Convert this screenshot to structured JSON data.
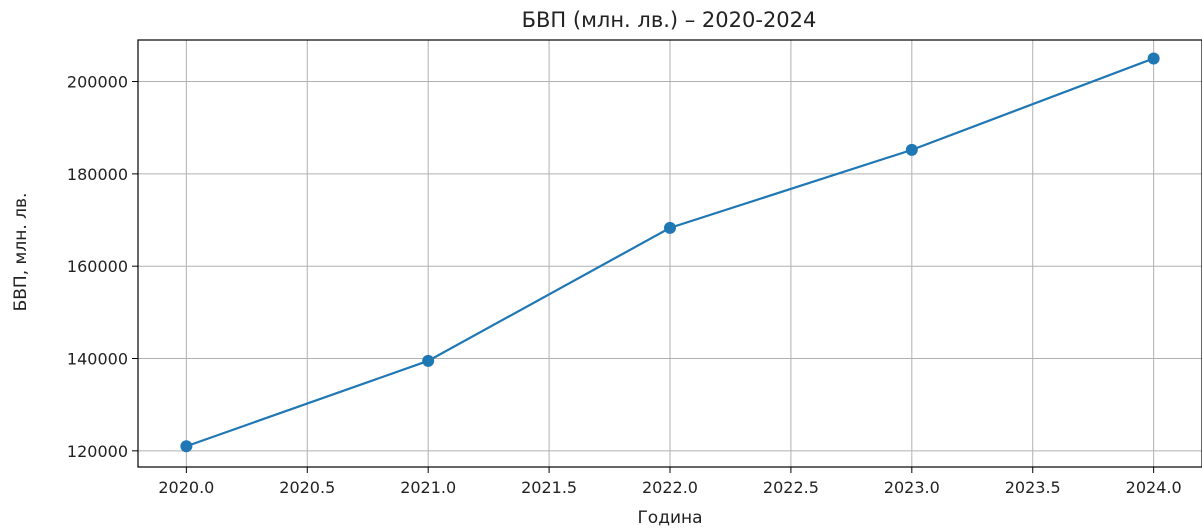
{
  "chart_data": {
    "type": "line",
    "title": "БВП (млн. лв.) – 2020-2024",
    "xlabel": "Година",
    "ylabel": "БВП, млн. лв.",
    "x": [
      2020,
      2021,
      2022,
      2023,
      2024
    ],
    "series": [
      {
        "values": [
          121000,
          139500,
          168300,
          185200,
          205000
        ]
      }
    ],
    "xlim": [
      2019.8,
      2024.2
    ],
    "ylim": [
      116500,
      209000
    ],
    "x_ticks": [
      2020.0,
      2020.5,
      2021.0,
      2021.5,
      2022.0,
      2022.5,
      2023.0,
      2023.5,
      2024.0
    ],
    "x_tick_labels": [
      "2020.0",
      "2020.5",
      "2021.0",
      "2021.5",
      "2022.0",
      "2022.5",
      "2023.0",
      "2023.5",
      "2024.0"
    ],
    "y_ticks": [
      120000,
      140000,
      160000,
      180000,
      200000
    ],
    "y_tick_labels": [
      "120000",
      "140000",
      "160000",
      "180000",
      "200000"
    ],
    "grid": true,
    "line_color": "#1f77b4",
    "grid_color": "#b0b0b0",
    "marker": "circle"
  }
}
